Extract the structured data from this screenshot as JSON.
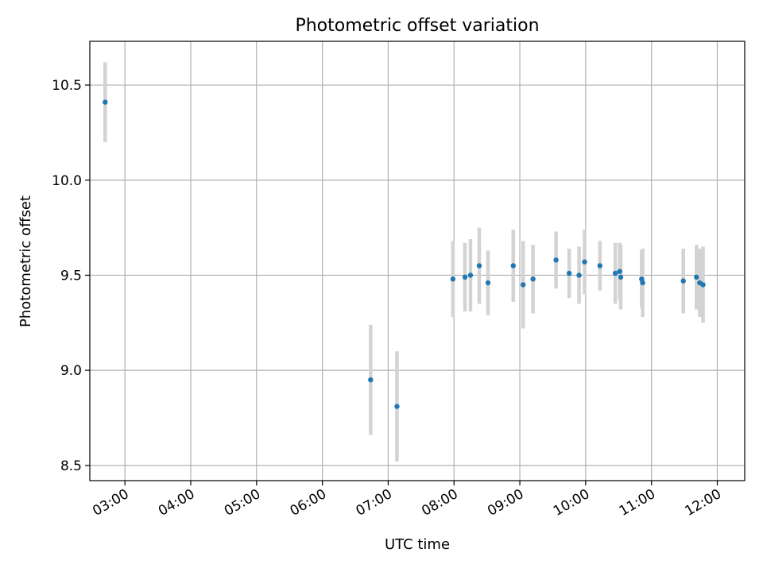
{
  "chart_data": {
    "type": "scatter",
    "title": "Photometric offset variation",
    "xlabel": "UTC time",
    "ylabel": "Photometric offset",
    "x_axis": "time",
    "xlim": [
      "02:28",
      "12:25"
    ],
    "ylim": [
      8.42,
      10.73
    ],
    "x_ticks": [
      "03:00",
      "04:00",
      "05:00",
      "06:00",
      "07:00",
      "08:00",
      "09:00",
      "10:00",
      "11:00",
      "12:00"
    ],
    "y_ticks": [
      8.5,
      9.0,
      9.5,
      10.0,
      10.5
    ],
    "y_tick_labels": [
      "8.5",
      "9.0",
      "9.5",
      "10.0",
      "10.5"
    ],
    "grid": true,
    "colors": {
      "marker": "#1f77b4",
      "errorbar": "#d3d3d3",
      "grid": "#b0b0b0"
    },
    "points": [
      {
        "x": "02:42",
        "y": 10.41,
        "err": 0.21
      },
      {
        "x": "06:44",
        "y": 8.95,
        "err": 0.29
      },
      {
        "x": "07:08",
        "y": 8.81,
        "err": 0.29
      },
      {
        "x": "07:59",
        "y": 9.48,
        "err": 0.2
      },
      {
        "x": "08:10",
        "y": 9.49,
        "err": 0.18
      },
      {
        "x": "08:15",
        "y": 9.5,
        "err": 0.19
      },
      {
        "x": "08:23",
        "y": 9.55,
        "err": 0.2
      },
      {
        "x": "08:31",
        "y": 9.46,
        "err": 0.17
      },
      {
        "x": "08:54",
        "y": 9.55,
        "err": 0.19
      },
      {
        "x": "09:03",
        "y": 9.45,
        "err": 0.23
      },
      {
        "x": "09:12",
        "y": 9.48,
        "err": 0.18
      },
      {
        "x": "09:33",
        "y": 9.58,
        "err": 0.15
      },
      {
        "x": "09:45",
        "y": 9.51,
        "err": 0.13
      },
      {
        "x": "09:54",
        "y": 9.5,
        "err": 0.15
      },
      {
        "x": "09:59",
        "y": 9.57,
        "err": 0.17
      },
      {
        "x": "10:13",
        "y": 9.55,
        "err": 0.13
      },
      {
        "x": "10:27",
        "y": 9.51,
        "err": 0.16
      },
      {
        "x": "10:31",
        "y": 9.52,
        "err": 0.15
      },
      {
        "x": "10:32",
        "y": 9.49,
        "err": 0.17
      },
      {
        "x": "10:51",
        "y": 9.48,
        "err": 0.15
      },
      {
        "x": "10:52",
        "y": 9.46,
        "err": 0.18
      },
      {
        "x": "11:29",
        "y": 9.47,
        "err": 0.17
      },
      {
        "x": "11:41",
        "y": 9.49,
        "err": 0.17
      },
      {
        "x": "11:44",
        "y": 9.46,
        "err": 0.18
      },
      {
        "x": "11:47",
        "y": 9.45,
        "err": 0.2
      }
    ]
  }
}
